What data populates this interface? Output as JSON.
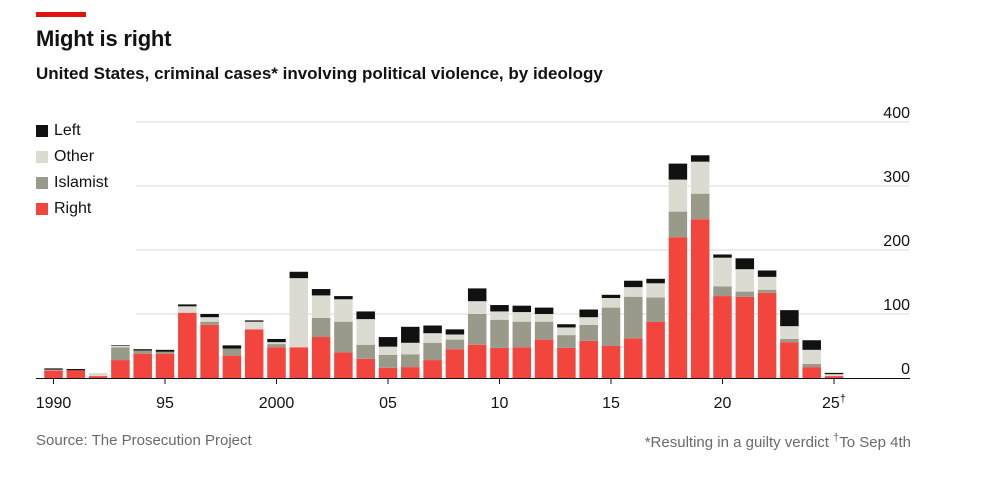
{
  "header": {
    "title": "Might is right",
    "subtitle": "United States, criminal cases* involving political violence, by ideology"
  },
  "footer": {
    "source": "Source: The Prosecution Project",
    "footnote_main": "*Resulting in a guilty verdict ",
    "footnote_dagger": "†",
    "footnote_tail": "To Sep 4th"
  },
  "colors": {
    "Right": "#f2453d",
    "Islamist": "#9a9a8a",
    "Other": "#dcdbd2",
    "Left": "#111111",
    "accent": "#e3120b"
  },
  "chart_data": {
    "type": "bar",
    "stacked": true,
    "title": "Might is right",
    "subtitle": "United States, criminal cases* involving political violence, by ideology",
    "xlabel": "",
    "ylabel": "",
    "ylim": [
      0,
      400
    ],
    "yticks": [
      0,
      100,
      200,
      300,
      400
    ],
    "legend": [
      "Left",
      "Other",
      "Islamist",
      "Right"
    ],
    "xtick_labels": [
      {
        "year": 1990,
        "label": "1990"
      },
      {
        "year": 1995,
        "label": "95"
      },
      {
        "year": 2000,
        "label": "2000"
      },
      {
        "year": 2005,
        "label": "05"
      },
      {
        "year": 2010,
        "label": "10"
      },
      {
        "year": 2015,
        "label": "15"
      },
      {
        "year": 2020,
        "label": "20"
      },
      {
        "year": 2025,
        "label": "25",
        "sup": "†"
      }
    ],
    "categories": [
      1990,
      1991,
      1992,
      1993,
      1994,
      1995,
      1996,
      1997,
      1998,
      1999,
      2000,
      2001,
      2002,
      2003,
      2004,
      2005,
      2006,
      2007,
      2008,
      2009,
      2010,
      2011,
      2012,
      2013,
      2014,
      2015,
      2016,
      2017,
      2018,
      2019,
      2020,
      2021,
      2022,
      2023,
      2024,
      2025
    ],
    "series": [
      {
        "name": "Right",
        "values": [
          12,
          12,
          3,
          28,
          38,
          38,
          102,
          83,
          35,
          76,
          48,
          48,
          64,
          40,
          30,
          16,
          17,
          28,
          45,
          52,
          47,
          48,
          60,
          47,
          58,
          50,
          62,
          88,
          220,
          248,
          128,
          127,
          133,
          56,
          17,
          3
        ]
      },
      {
        "name": "Islamist",
        "values": [
          0,
          0,
          0,
          20,
          5,
          3,
          0,
          5,
          11,
          0,
          5,
          0,
          30,
          48,
          22,
          20,
          20,
          27,
          15,
          48,
          44,
          40,
          28,
          20,
          25,
          60,
          65,
          38,
          40,
          40,
          15,
          8,
          5,
          5,
          5,
          0
        ]
      },
      {
        "name": "Other",
        "values": [
          1,
          0,
          5,
          2,
          0,
          0,
          10,
          7,
          0,
          12,
          3,
          108,
          35,
          35,
          40,
          13,
          18,
          15,
          8,
          20,
          13,
          15,
          12,
          12,
          12,
          15,
          15,
          22,
          50,
          50,
          45,
          35,
          20,
          20,
          22,
          3
        ]
      },
      {
        "name": "Left",
        "values": [
          2,
          2,
          0,
          1,
          2,
          3,
          3,
          5,
          5,
          2,
          5,
          10,
          10,
          5,
          12,
          15,
          25,
          12,
          8,
          20,
          10,
          10,
          10,
          5,
          12,
          5,
          10,
          7,
          25,
          10,
          5,
          17,
          10,
          25,
          15,
          2
        ]
      }
    ]
  }
}
